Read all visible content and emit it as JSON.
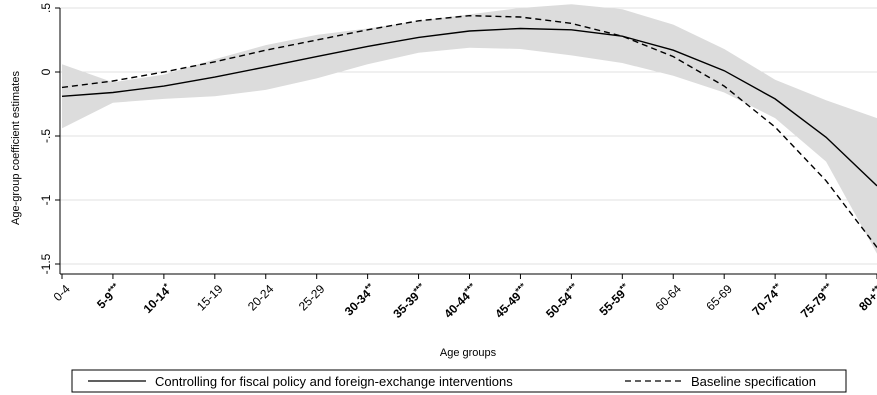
{
  "chart_data": {
    "type": "line",
    "xlabel": "Age groups",
    "ylabel": "Age-group coefficient estimates",
    "ylim": [
      -1.5,
      0.5
    ],
    "yticks": [
      {
        "value": 0.5,
        "label": ".5"
      },
      {
        "value": 0,
        "label": "0"
      },
      {
        "value": -0.5,
        "label": "-.5"
      },
      {
        "value": -1,
        "label": "-1"
      },
      {
        "value": -1.5,
        "label": "-1.5"
      }
    ],
    "grid": "horizontal",
    "legend_position": "bottom",
    "categories": [
      {
        "group": "0-4",
        "stars": "",
        "bold": false
      },
      {
        "group": "5-9",
        "stars": "***",
        "bold": true
      },
      {
        "group": "10-14",
        "stars": "*",
        "bold": true
      },
      {
        "group": "15-19",
        "stars": "",
        "bold": false
      },
      {
        "group": "20-24",
        "stars": "",
        "bold": false
      },
      {
        "group": "25-29",
        "stars": "",
        "bold": false
      },
      {
        "group": "30-34",
        "stars": "**",
        "bold": true
      },
      {
        "group": "35-39",
        "stars": "***",
        "bold": true
      },
      {
        "group": "40-44",
        "stars": "***",
        "bold": true
      },
      {
        "group": "45-49",
        "stars": "***",
        "bold": true
      },
      {
        "group": "50-54",
        "stars": "***",
        "bold": true
      },
      {
        "group": "55-59",
        "stars": "**",
        "bold": true
      },
      {
        "group": "60-64",
        "stars": "",
        "bold": false
      },
      {
        "group": "65-69",
        "stars": "",
        "bold": false
      },
      {
        "group": "70-74",
        "stars": "**",
        "bold": true
      },
      {
        "group": "75-79",
        "stars": "***",
        "bold": true
      },
      {
        "group": "80+",
        "stars": "***",
        "bold": true
      }
    ],
    "series": [
      {
        "name": "Controlling for fiscal policy and foreign-exchange interventions",
        "style": "solid",
        "values": [
          -0.19,
          -0.16,
          -0.11,
          -0.04,
          0.04,
          0.12,
          0.2,
          0.27,
          0.32,
          0.34,
          0.33,
          0.28,
          0.17,
          0.01,
          -0.21,
          -0.51,
          -0.89
        ]
      },
      {
        "name": "Baseline specification",
        "style": "dashed",
        "values": [
          -0.12,
          -0.07,
          0.0,
          0.08,
          0.17,
          0.25,
          0.33,
          0.4,
          0.44,
          0.43,
          0.38,
          0.28,
          0.12,
          -0.11,
          -0.43,
          -0.85,
          -1.37
        ]
      }
    ],
    "confidence_band": {
      "series": "Controlling for fiscal policy and foreign-exchange interventions",
      "color": "#dcdcdc",
      "lower": [
        -0.44,
        -0.24,
        -0.21,
        -0.19,
        -0.14,
        -0.05,
        0.06,
        0.15,
        0.19,
        0.18,
        0.13,
        0.07,
        -0.03,
        -0.16,
        -0.36,
        -0.7,
        -1.42
      ],
      "upper": [
        0.06,
        -0.08,
        -0.02,
        0.1,
        0.21,
        0.29,
        0.34,
        0.4,
        0.45,
        0.5,
        0.53,
        0.49,
        0.37,
        0.18,
        -0.06,
        -0.22,
        -0.36
      ]
    },
    "colors": {
      "line": "#000000",
      "band": "#dcdcdc",
      "grid": "#e0e0e0"
    }
  }
}
